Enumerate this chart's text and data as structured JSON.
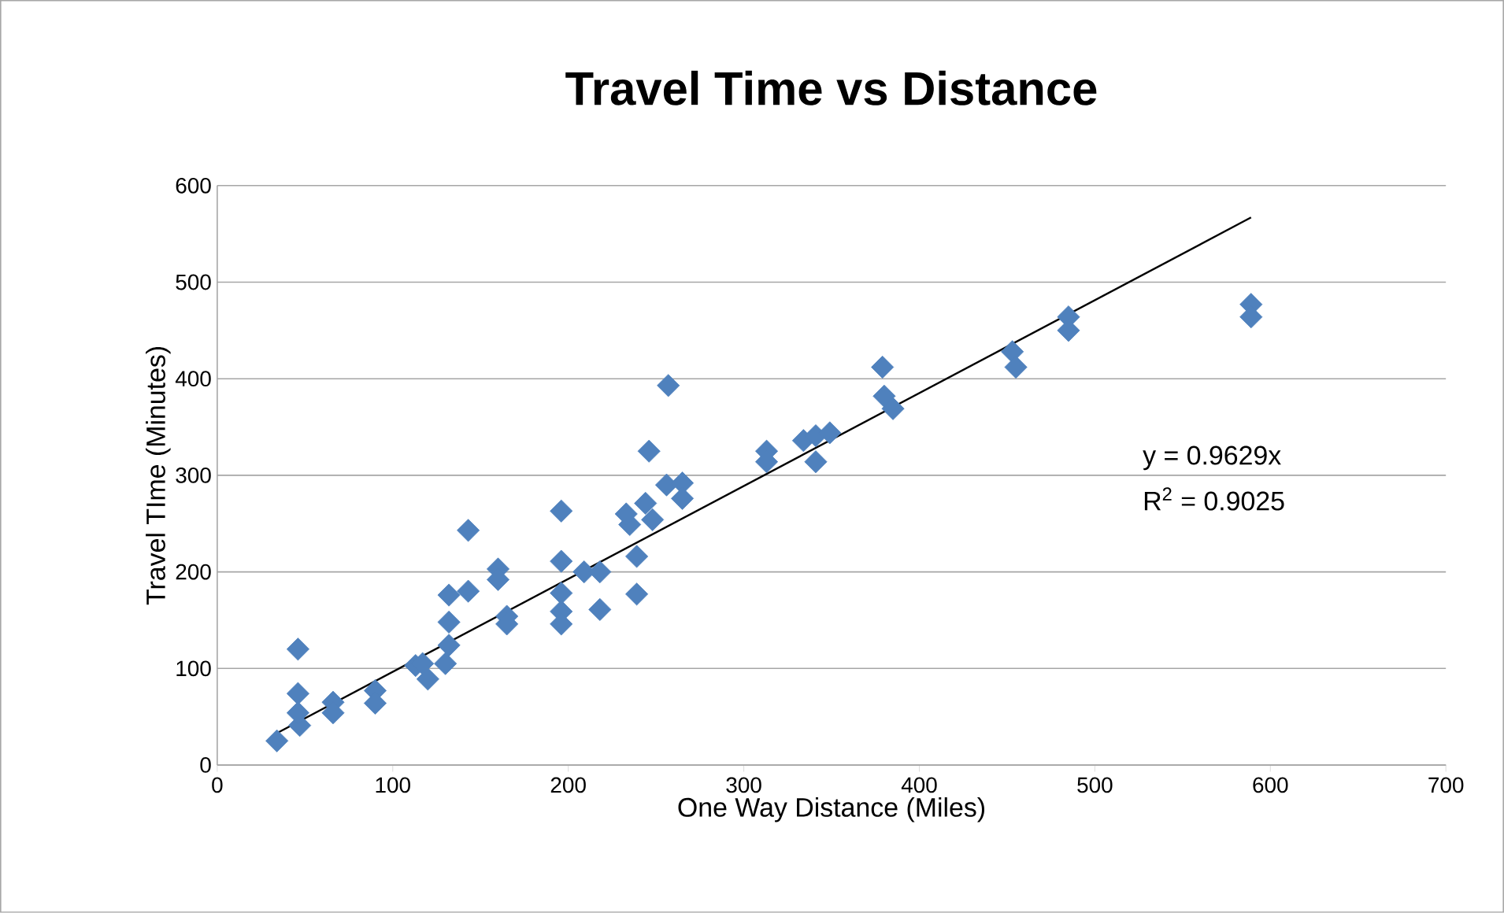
{
  "chart_data": {
    "type": "scatter",
    "title": "Travel Time vs Distance",
    "xlabel": "One Way Distance (Miles)",
    "ylabel": "Travel TIme (Minutes)",
    "xlim": [
      0,
      700
    ],
    "xticks": [
      0,
      100,
      200,
      300,
      400,
      500,
      600,
      700
    ],
    "ylim": [
      0,
      600
    ],
    "yticks": [
      0,
      100,
      200,
      300,
      400,
      500,
      600
    ],
    "grid": "y",
    "marker": "diamond",
    "annotations": [
      "y = 0.9629x",
      "R$^{2}$ = 0.9025"
    ],
    "series": [
      {
        "color": "#4f81bd",
        "x": [
          34,
          46,
          46,
          47,
          46,
          66,
          66,
          90,
          90,
          113,
          120,
          117,
          130,
          132,
          132,
          132,
          143,
          143,
          160,
          160,
          165,
          165,
          196,
          196,
          196,
          196,
          196,
          209,
          218,
          218,
          239,
          239,
          235,
          233,
          244,
          248,
          246,
          257,
          256,
          265,
          265,
          313,
          313,
          334,
          341,
          349,
          341,
          379,
          380,
          385,
          453,
          455,
          485,
          485,
          589,
          589
        ],
        "values": [
          25,
          120,
          74,
          41,
          54,
          65,
          54,
          77,
          64,
          103,
          89,
          105,
          105,
          124,
          148,
          176,
          243,
          180,
          203,
          192,
          154,
          146,
          263,
          211,
          178,
          159,
          146,
          200,
          200,
          161,
          177,
          216,
          249,
          260,
          271,
          254,
          325,
          393,
          290,
          292,
          276,
          325,
          314,
          336,
          341,
          344,
          314,
          412,
          382,
          369,
          428,
          412,
          464,
          450,
          477,
          464
        ]
      },
      {
        "type": "line",
        "color": "#000000",
        "marker": "none",
        "x": [
          34,
          589
        ],
        "values": [
          33,
          567
        ]
      }
    ]
  }
}
